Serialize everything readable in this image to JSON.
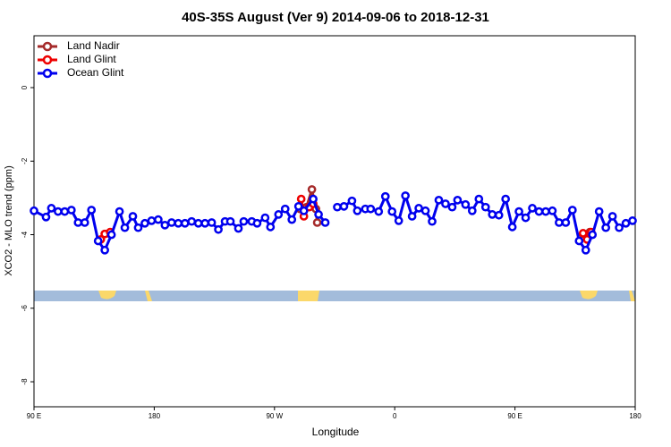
{
  "chart_data": {
    "type": "line",
    "title": "40S-35S August (Ver 9)   2014-09-06 to 2018-12-31",
    "x_label": "Longitude",
    "y_label": "XCO2 - MLO trend (ppm)",
    "xlim": [
      90,
      540
    ],
    "ylim": [
      -8.68,
      1.41
    ],
    "xticks": [
      {
        "value": 90,
        "label": "90 E"
      },
      180,
      {
        "value": 270,
        "label": "90 W"
      },
      {
        "value": 360,
        "label": "0"
      },
      {
        "value": 450,
        "label": "90 E"
      },
      {
        "value": 540,
        "label": "180"
      }
    ],
    "yticks": [
      0,
      -2,
      -4,
      -6,
      -8
    ],
    "legend": "top-left",
    "series": [
      {
        "name": "Land Nadir",
        "color": "#a52a2a",
        "x": [
          143,
          147,
          null,
          289,
          294,
          298,
          301,
          302,
          null,
          501,
          506
        ],
        "values": [
          -3.98,
          -3.98,
          null,
          -3.3,
          -3.25,
          -2.77,
          -3.3,
          -3.67,
          null,
          -3.98,
          -3.93
        ]
      },
      {
        "name": "Land Glint",
        "color": "#ee0000",
        "x": [
          140,
          143,
          147,
          null,
          290,
          292,
          296,
          299,
          null,
          501,
          504,
          507
        ],
        "values": [
          -4.13,
          -3.98,
          -3.93,
          null,
          -3.03,
          -3.5,
          -3.25,
          -3.16,
          null,
          -3.96,
          -4.13,
          -3.93
        ]
      },
      {
        "name": "Ocean Glint",
        "color": "#0000ee",
        "x": [
          90,
          99,
          103,
          108,
          113,
          118,
          123,
          128,
          133,
          138,
          143,
          148,
          154,
          158,
          164,
          168,
          173,
          178,
          183,
          188,
          193,
          198,
          203,
          208,
          213,
          218,
          223,
          228,
          233,
          237,
          243,
          247,
          253,
          257,
          263,
          267,
          273,
          278,
          283,
          288,
          292,
          299,
          303,
          308,
          null,
          317,
          322,
          328,
          332,
          338,
          342,
          348,
          353,
          358,
          363,
          368,
          373,
          378,
          383,
          388,
          393,
          398,
          403,
          407,
          413,
          418,
          423,
          428,
          433,
          438,
          443,
          448,
          453,
          458,
          463,
          468,
          473,
          478,
          483,
          488,
          493,
          498,
          503,
          508,
          513,
          518,
          523,
          528,
          533,
          538
        ],
        "values": [
          -3.35,
          -3.52,
          -3.28,
          -3.37,
          -3.37,
          -3.33,
          -3.67,
          -3.67,
          -3.33,
          -4.17,
          -4.42,
          -4.0,
          -3.37,
          -3.81,
          -3.5,
          -3.81,
          -3.69,
          -3.62,
          -3.59,
          -3.74,
          -3.67,
          -3.69,
          -3.69,
          -3.64,
          -3.69,
          -3.69,
          -3.67,
          -3.86,
          -3.64,
          -3.64,
          -3.83,
          -3.64,
          -3.64,
          -3.69,
          -3.54,
          -3.79,
          -3.45,
          -3.3,
          -3.59,
          -3.23,
          -3.35,
          -3.03,
          -3.45,
          -3.67,
          null,
          -3.25,
          -3.23,
          -3.08,
          -3.35,
          -3.3,
          -3.3,
          -3.37,
          -2.96,
          -3.37,
          -3.62,
          -2.94,
          -3.5,
          -3.28,
          -3.35,
          -3.64,
          -3.06,
          -3.16,
          -3.25,
          -3.06,
          -3.18,
          -3.35,
          -3.03,
          -3.25,
          -3.45,
          -3.47,
          -3.03,
          -3.79,
          -3.37,
          -3.54,
          -3.28,
          -3.37,
          -3.37,
          -3.35,
          -3.67,
          -3.67,
          -3.33,
          -4.17,
          -4.42,
          -4.0,
          -3.37,
          -3.81,
          -3.5,
          -3.81,
          -3.69,
          -3.62
        ]
      }
    ]
  }
}
